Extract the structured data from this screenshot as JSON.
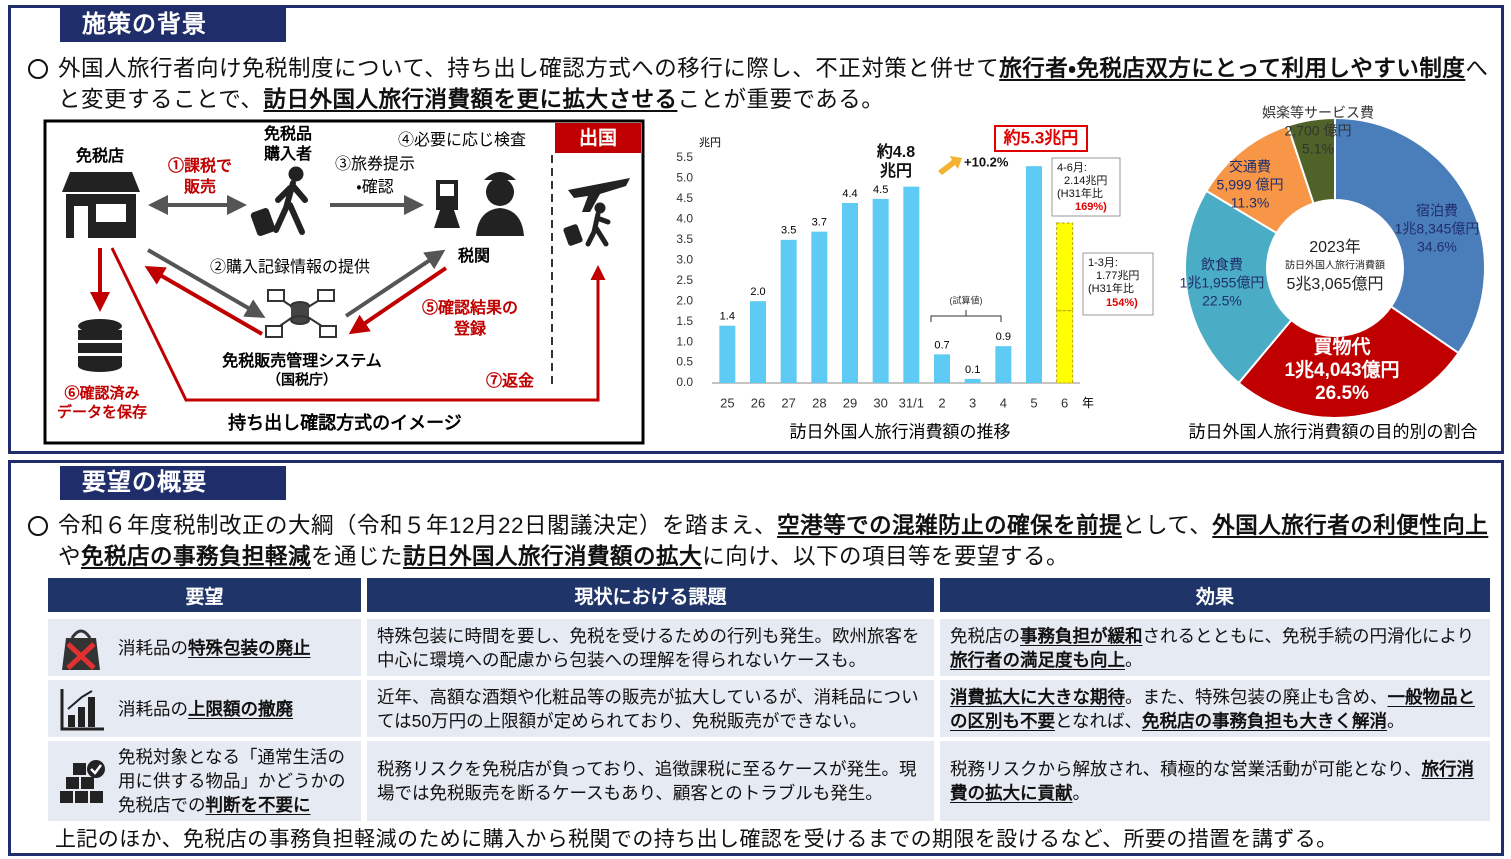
{
  "background": {
    "title": "施策の背景",
    "paragraph": [
      {
        "text": "外国人旅行者向け免税制度について、持ち出し確認方式への移行に際し、不正対策と併せて",
        "em": false
      },
      {
        "text": "旅行者・免税店双方にとって利用しやすい制度",
        "em": true
      },
      {
        "text": "へと変更することで、",
        "em": false
      },
      {
        "text": "訪日外国人旅行消費額を更に拡大させる",
        "em": true
      },
      {
        "text": "ことが重要である。",
        "em": false
      }
    ]
  },
  "diagram": {
    "shop": "免税店",
    "buyer": [
      "免税品",
      "購入者"
    ],
    "step1": [
      "①課税で",
      "販売"
    ],
    "step3": [
      "③旅券提示",
      "・確認"
    ],
    "step4": "④必要に応じ検査",
    "customs": "税関",
    "departure": "出国",
    "step2": "②購入記録情報の提供",
    "step5": [
      "⑤確認結果の",
      "登録"
    ],
    "system": [
      "免税販売管理システム",
      "（国税庁）"
    ],
    "step6": [
      "⑥確認済み",
      "データを保存"
    ],
    "step7": "⑦返金",
    "caption": "持ち出し確認方式のイメージ"
  },
  "chart_data": [
    {
      "type": "bar",
      "unit": "兆円",
      "x_label": "年",
      "categories": [
        "25",
        "26",
        "27",
        "28",
        "29",
        "30",
        "31/1",
        "2",
        "3",
        "4",
        "5",
        "6"
      ],
      "series": [
        {
          "color": "#5ecbf4",
          "values": [
            1.4,
            2.0,
            3.5,
            3.7,
            4.4,
            4.5,
            4.8,
            0.7,
            0.1,
            0.9,
            5.3,
            null
          ],
          "value_labels": [
            "1.4",
            "2.0",
            "3.5",
            "3.7",
            "4.4",
            "4.5",
            null,
            "0.7",
            "0.1",
            "0.9",
            null,
            null
          ]
        },
        {
          "color": "#ffff00",
          "values": [
            null,
            null,
            null,
            null,
            null,
            null,
            null,
            null,
            null,
            null,
            null,
            1.77
          ]
        },
        {
          "color": "#ffff00",
          "values": [
            null,
            null,
            null,
            null,
            null,
            null,
            null,
            null,
            null,
            null,
            null,
            2.14
          ]
        }
      ],
      "ylim": [
        0,
        5.5
      ],
      "yticks": [
        {
          "value": 0,
          "label": "0.0"
        },
        0.5,
        {
          "value": 1,
          "label": "1.0"
        },
        1.5,
        {
          "value": 2,
          "label": "2.0"
        },
        2.5,
        {
          "value": 3,
          "label": "3.0"
        },
        3.5,
        {
          "value": 4,
          "label": "4.0"
        },
        4.5,
        {
          "value": 5,
          "label": "5.0"
        },
        5.5
      ],
      "annotations": [
        "約4.8",
        "兆円",
        "+10.2%",
        "約5.3兆円",
        "4-6月:",
        "2.14兆円",
        "(H31年比",
        "169%)",
        "1-3月:",
        "1.77兆円",
        "(H31年比",
        "154%)",
        "(試算値)"
      ],
      "caption": "訪日外国人旅行消費額の推移"
    },
    {
      "type": "pie",
      "categories": [
        "宿泊費",
        "買物代",
        "飲食費",
        "交通費",
        "娯楽等サービス費"
      ],
      "amounts": [
        "1兆8,345億円",
        "1兆4,043億円",
        "1兆1,955億円",
        "5,999 億円",
        "2,700 億円"
      ],
      "values": [
        34.6,
        26.5,
        22.5,
        11.3,
        5.1
      ],
      "value_labels": [
        "34.6%",
        "26.5%",
        "22.5%",
        "11.3%",
        "5.1%"
      ],
      "colors": [
        "#4a7ebb",
        "#c00000",
        "#4bacc6",
        "#f79646",
        "#4f6228"
      ],
      "center": [
        "2023年",
        "訪日外国人旅行消費額",
        "5兆3,065億円"
      ],
      "caption": "訪日外国人旅行消費額の目的別の割合"
    }
  ],
  "request": {
    "title": "要望の概要",
    "paragraph": [
      {
        "text": "令和６年度税制改正の大綱（令和５年12月22日閣議決定）を踏まえ、",
        "em": false
      },
      {
        "text": "空港等での混雑防止の確保を前提",
        "em": true
      },
      {
        "text": "として、",
        "em": false
      },
      {
        "text": "外国人旅行者の利便性向上",
        "em": true
      },
      {
        "text": "や",
        "em": false
      },
      {
        "text": "免税店の事務負担軽減",
        "em": true
      },
      {
        "text": "を通じた",
        "em": false
      },
      {
        "text": "訪日外国人旅行消費額の拡大",
        "em": true
      },
      {
        "text": "に向け、以下の項目等を要望する。",
        "em": false
      }
    ],
    "table": {
      "header": [
        "要望",
        "現状における課題",
        "効果"
      ],
      "rows": [
        [
          [
            {
              "text": "消耗品の",
              "em": false
            },
            {
              "text": "特殊包装の廃止",
              "em": true
            }
          ],
          [
            {
              "text": "特殊包装に時間を要し、免税を受けるための行列も発生。欧州旅客を中心に環境への配慮から包装への理解を得られないケースも。",
              "em": false
            }
          ],
          [
            {
              "text": "免税店の",
              "em": false
            },
            {
              "text": "事務負担が緩和",
              "em": true
            },
            {
              "text": "されるとともに、免税手続の円滑化により",
              "em": false
            },
            {
              "text": "旅行者の満足度も向上",
              "em": true
            },
            {
              "text": "。",
              "em": false
            }
          ]
        ],
        [
          [
            {
              "text": "消耗品の",
              "em": false
            },
            {
              "text": "上限額の撤廃",
              "em": true
            }
          ],
          [
            {
              "text": "近年、高額な酒類や化粧品等の販売が拡大しているが、消耗品については50万円の上限額が定められており、免税販売ができない。",
              "em": false
            }
          ],
          [
            {
              "text": "消費拡大に大きな期待",
              "em": true
            },
            {
              "text": "。また、特殊包装の廃止も含め、",
              "em": false
            },
            {
              "text": "一般物品との区別も不要",
              "em": true
            },
            {
              "text": "となれば、",
              "em": false
            },
            {
              "text": "免税店の事務負担も大きく解消",
              "em": true
            },
            {
              "text": "。",
              "em": false
            }
          ]
        ],
        [
          [
            {
              "text": "免税対象となる「通常生活の用に供する物品」かどうかの免税店での",
              "em": false
            },
            {
              "text": "判断を不要に",
              "em": true
            }
          ],
          [
            {
              "text": "税務リスクを免税店が負っており、追徴課税に至るケースが発生。現場では免税販売を断るケースもあり、顧客とのトラブルも発生。",
              "em": false
            }
          ],
          [
            {
              "text": "税務リスクから解放され、積極的な営業活動が可能となり、",
              "em": false
            },
            {
              "text": "旅行消費の拡大に貢献",
              "em": true
            },
            {
              "text": "。",
              "em": false
            }
          ]
        ]
      ]
    },
    "footer": "上記のほか、免税店の事務負担軽減のために購入から税関での持ち出し確認を受けるまでの期限を設けるなど、所要の措置を講ずる。"
  }
}
